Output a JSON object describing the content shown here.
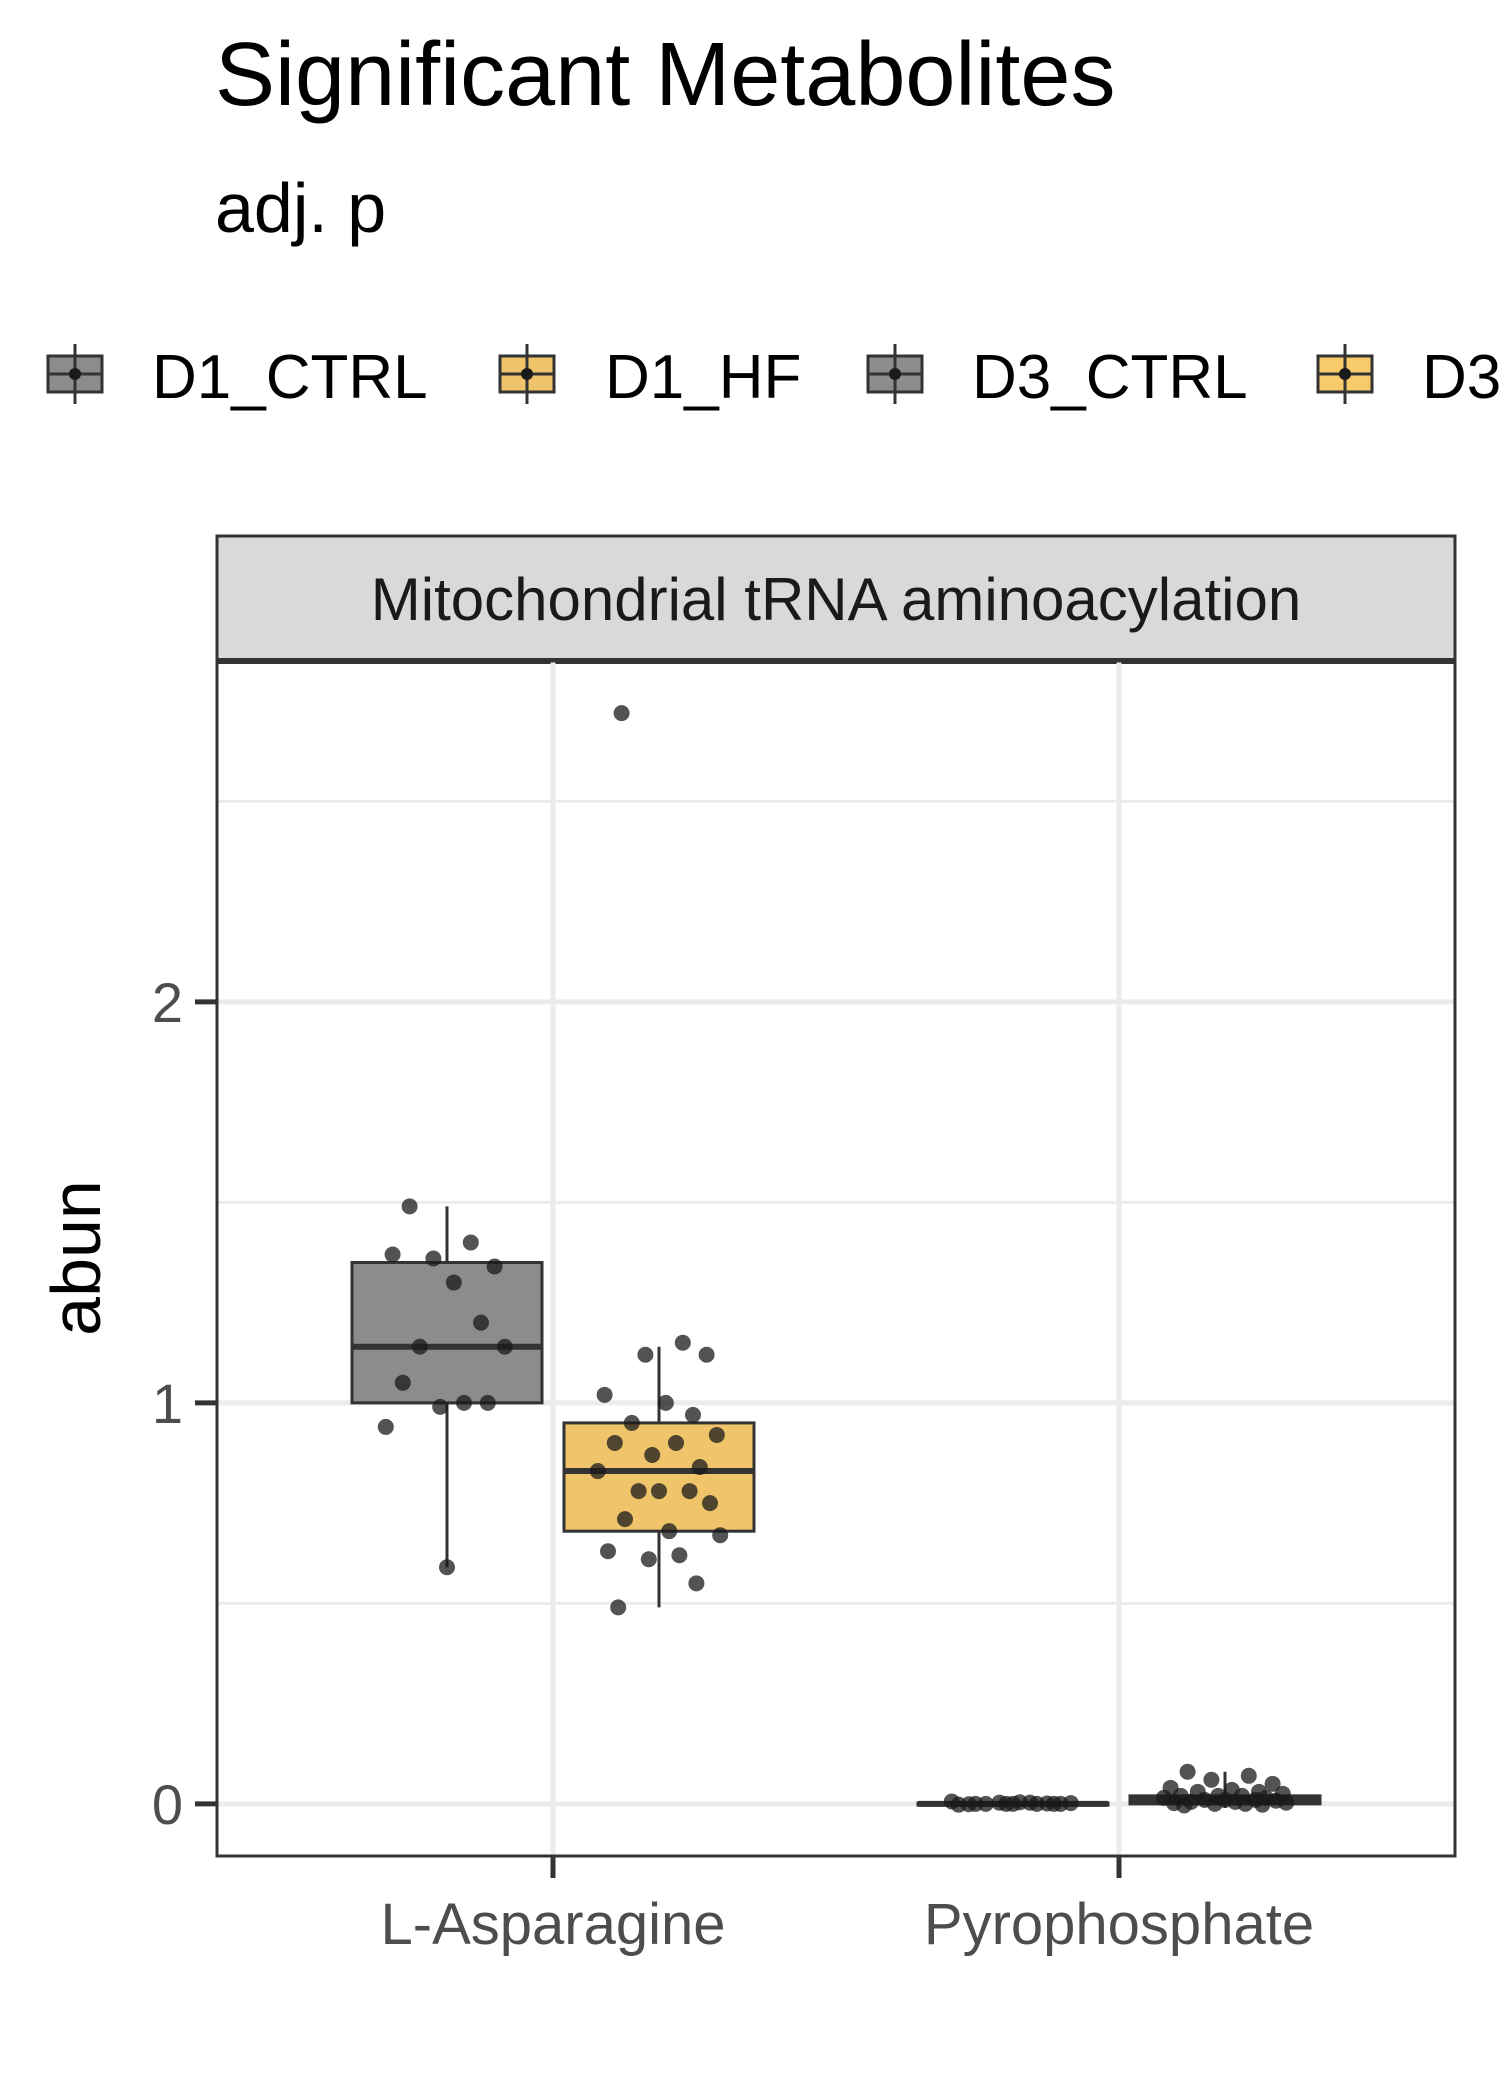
{
  "title": "Significant Metabolites",
  "subtitle": "adj. p",
  "legend_entries": [
    "D1_CTRL",
    "D1_HF",
    "D3_CTRL",
    "D3"
  ],
  "colors": {
    "D1_CTRL": "#8c8c8c",
    "D1_HF": "#f0c46a",
    "D3_CTRL": "#8c8c8c",
    "D3": "#f7cb6a",
    "panel_strip": "#d9d9d9",
    "gridline": "#ebebeb",
    "box_outline": "#333333",
    "points": "#1a1a1a"
  },
  "chart_data": {
    "type": "box",
    "facet": "Mitochondrial tRNA aminoacylation",
    "ylabel": "abun",
    "xlabel": "",
    "ylim": [
      -0.13,
      2.85
    ],
    "yticks": [
      0,
      1,
      2
    ],
    "categories": [
      "L-Asparagine",
      "Pyrophosphate"
    ],
    "legend_position": "top",
    "grid": true,
    "groups": [
      {
        "category": "L-Asparagine",
        "series": "D1_CTRL",
        "box": {
          "lower_whisker": 0.59,
          "q1": 1.0,
          "median": 1.14,
          "q3": 1.35,
          "upper_whisker": 1.49
        },
        "points": [
          1.49,
          1.4,
          1.36,
          1.34,
          1.37,
          1.3,
          1.2,
          1.14,
          1.14,
          1.05,
          1.0,
          0.99,
          1.0,
          0.94,
          0.59
        ]
      },
      {
        "category": "L-Asparagine",
        "series": "D1_HF",
        "box": {
          "lower_whisker": 0.49,
          "q1": 0.68,
          "median": 0.83,
          "q3": 0.95,
          "upper_whisker": 1.14
        },
        "points": [
          2.72,
          1.15,
          1.12,
          1.12,
          1.02,
          1.0,
          0.97,
          0.95,
          0.92,
          0.9,
          0.9,
          0.87,
          0.84,
          0.83,
          0.78,
          0.78,
          0.78,
          0.75,
          0.71,
          0.68,
          0.67,
          0.63,
          0.62,
          0.61,
          0.55,
          0.49
        ]
      },
      {
        "category": "Pyrophosphate",
        "series": "D3_CTRL",
        "box": {
          "lower_whisker": -0.003,
          "q1": -0.002,
          "median": 0.0,
          "q3": 0.002,
          "upper_whisker": 0.006
        },
        "points": [
          0.0,
          0.0,
          0.003,
          0.0,
          -0.002,
          0.004,
          0.001,
          0.0,
          0.002,
          -0.001,
          0.003,
          0.0,
          0.0,
          0.006,
          0.0
        ]
      },
      {
        "category": "Pyrophosphate",
        "series": "D3",
        "box": {
          "lower_whisker": -0.01,
          "q1": 0.0,
          "median": 0.01,
          "q3": 0.02,
          "upper_whisker": 0.08
        },
        "points": [
          0.08,
          0.07,
          0.06,
          0.05,
          0.04,
          0.035,
          0.03,
          0.03,
          0.025,
          0.02,
          0.02,
          0.02,
          0.015,
          0.015,
          0.01,
          0.01,
          0.01,
          0.008,
          0.005,
          0.005,
          0.003,
          0.002,
          0.0,
          0.0,
          -0.002,
          -0.004
        ]
      }
    ]
  }
}
